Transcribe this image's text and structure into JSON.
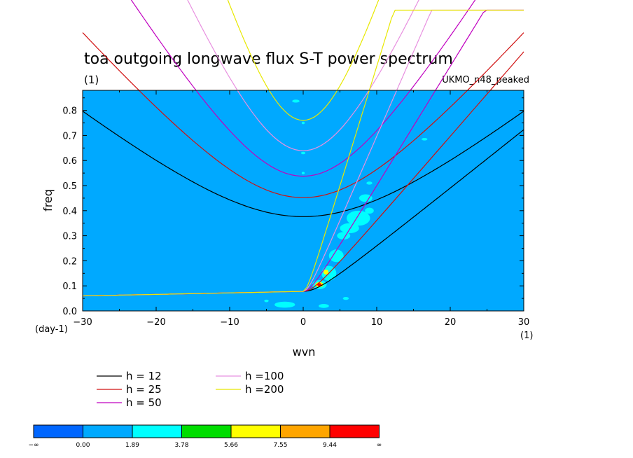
{
  "chart_data": {
    "type": "contour",
    "title": "toa outgoing longwave flux S-T power spectrum",
    "subtitle_left": "(1)",
    "subtitle_right": "UKMO_n48_peaked",
    "xlabel": "wvn",
    "ylabel": "freq",
    "x_unit_label": "(1)",
    "y_unit_label": "(day-1)",
    "xlim": [
      -30,
      30
    ],
    "ylim": [
      0,
      0.88
    ],
    "x_ticks": [
      -30,
      -20,
      -10,
      0,
      10,
      20,
      30
    ],
    "y_ticks": [
      0.0,
      0.1,
      0.2,
      0.3,
      0.4,
      0.5,
      0.6,
      0.7,
      0.8
    ],
    "x_tick_labels": [
      "−30",
      "−20",
      "−10",
      "0",
      "10",
      "20",
      "30"
    ],
    "y_tick_labels": [
      "0.0",
      "0.1",
      "0.2",
      "0.3",
      "0.4",
      "0.5",
      "0.6",
      "0.7",
      "0.8"
    ],
    "background_level_color": "#00a9ff",
    "legend_title": "",
    "series": [
      {
        "name": "h = 12",
        "color": "#000000"
      },
      {
        "name": "h = 25",
        "color": "#d01010"
      },
      {
        "name": "h = 50",
        "color": "#c000c0"
      },
      {
        "name": "h =100",
        "color": "#e890e0"
      },
      {
        "name": "h =200",
        "color": "#e8e800"
      }
    ],
    "colorbar": {
      "labels": [
        "−∞",
        "0.00",
        "1.89",
        "3.78",
        "5.66",
        "7.55",
        "9.44",
        "∞"
      ],
      "colors": [
        "#0066ff",
        "#00a9ff",
        "#00ffff",
        "#00dd00",
        "#ffff00",
        "#ffa500",
        "#ff0000"
      ]
    },
    "blobs": [
      {
        "x": 7.5,
        "y": 0.37,
        "rx": 1.6,
        "ry": 0.03,
        "level": 2
      },
      {
        "x": 6.3,
        "y": 0.33,
        "rx": 1.3,
        "ry": 0.02,
        "level": 2
      },
      {
        "x": 5.5,
        "y": 0.3,
        "rx": 0.9,
        "ry": 0.015,
        "level": 2
      },
      {
        "x": 8.5,
        "y": 0.45,
        "rx": 0.9,
        "ry": 0.015,
        "level": 2
      },
      {
        "x": 9.0,
        "y": 0.4,
        "rx": 0.6,
        "ry": 0.012,
        "level": 2
      },
      {
        "x": 4.5,
        "y": 0.22,
        "rx": 1.0,
        "ry": 0.025,
        "level": 2
      },
      {
        "x": 3.5,
        "y": 0.15,
        "rx": 1.0,
        "ry": 0.03,
        "level": 2
      },
      {
        "x": 3.1,
        "y": 0.155,
        "rx": 0.35,
        "ry": 0.01,
        "level": 4
      },
      {
        "x": 2.2,
        "y": 0.105,
        "rx": 1.0,
        "ry": 0.018,
        "level": 2
      },
      {
        "x": 2.2,
        "y": 0.105,
        "rx": 0.55,
        "ry": 0.01,
        "level": 4
      },
      {
        "x": 2.2,
        "y": 0.105,
        "rx": 0.3,
        "ry": 0.006,
        "level": 6
      },
      {
        "x": -2.5,
        "y": 0.025,
        "rx": 1.4,
        "ry": 0.012,
        "level": 2
      },
      {
        "x": 2.8,
        "y": 0.02,
        "rx": 0.7,
        "ry": 0.008,
        "level": 2
      },
      {
        "x": -1.0,
        "y": 0.837,
        "rx": 0.5,
        "ry": 0.006,
        "level": 2
      },
      {
        "x": -5.0,
        "y": 0.04,
        "rx": 0.3,
        "ry": 0.005,
        "level": 2
      },
      {
        "x": 0.0,
        "y": 0.63,
        "rx": 0.3,
        "ry": 0.005,
        "level": 2
      },
      {
        "x": 0.0,
        "y": 0.75,
        "rx": 0.2,
        "ry": 0.005,
        "level": 2
      },
      {
        "x": 0.0,
        "y": 0.55,
        "rx": 0.2,
        "ry": 0.005,
        "level": 2
      },
      {
        "x": 16.5,
        "y": 0.685,
        "rx": 0.4,
        "ry": 0.005,
        "level": 2
      },
      {
        "x": 9.0,
        "y": 0.51,
        "rx": 0.4,
        "ry": 0.006,
        "level": 2
      },
      {
        "x": 5.8,
        "y": 0.05,
        "rx": 0.4,
        "ry": 0.006,
        "level": 2
      }
    ]
  }
}
